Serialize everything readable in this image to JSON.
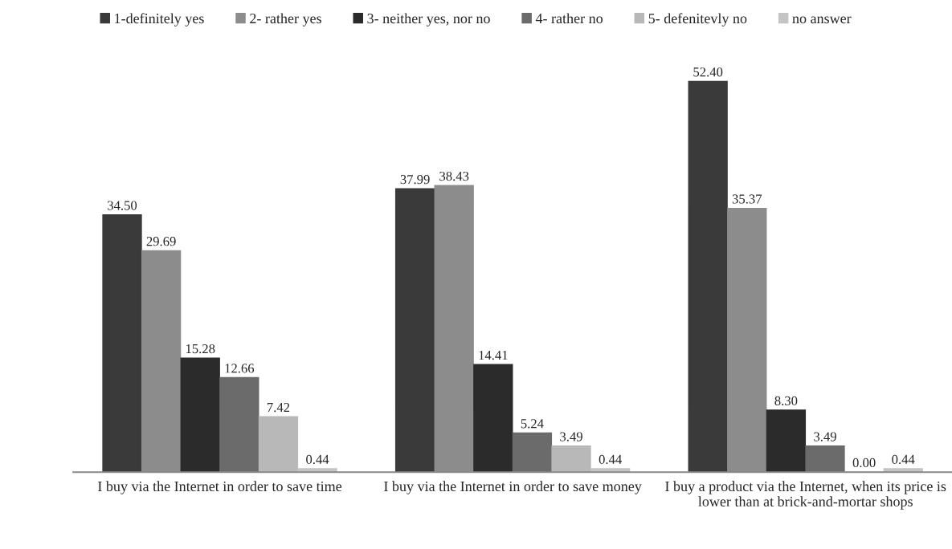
{
  "chart_data": {
    "type": "bar",
    "categories": [
      "I buy via the Internet in order to save time",
      "I buy via the Internet in order to save money",
      "I buy a product via the Internet, when its price is lower than at brick-and-mortar shops"
    ],
    "series": [
      {
        "name": "1-definitely yes",
        "color": "#3a3a3a",
        "values": [
          34.5,
          37.99,
          52.4
        ],
        "value_labels": [
          "34.50",
          "37.99",
          "52.40"
        ]
      },
      {
        "name": "2- rather yes",
        "color": "#8c8c8c",
        "values": [
          29.69,
          38.43,
          35.37
        ],
        "value_labels": [
          "29.69",
          "38.43",
          "35.37"
        ]
      },
      {
        "name": "3- neither yes, nor no",
        "color": "#2b2b2b",
        "values": [
          15.28,
          14.41,
          8.3
        ],
        "value_labels": [
          "15.28",
          "14.41",
          "8.30"
        ]
      },
      {
        "name": "4- rather no",
        "color": "#6b6b6b",
        "values": [
          12.66,
          5.24,
          3.49
        ],
        "value_labels": [
          "12.66",
          "5.24",
          "3.49"
        ]
      },
      {
        "name": "5- defenitevly no",
        "color": "#b8b8b8",
        "values": [
          7.42,
          3.49,
          0.0
        ],
        "value_labels": [
          "7.42",
          "3.49",
          "0.00"
        ]
      },
      {
        "name": "no answer",
        "color": "#c4c4c4",
        "values": [
          0.44,
          0.44,
          0.44
        ],
        "value_labels": [
          "0.44",
          "0.44",
          "0.44"
        ]
      }
    ],
    "legend": "top",
    "grid": false
  }
}
